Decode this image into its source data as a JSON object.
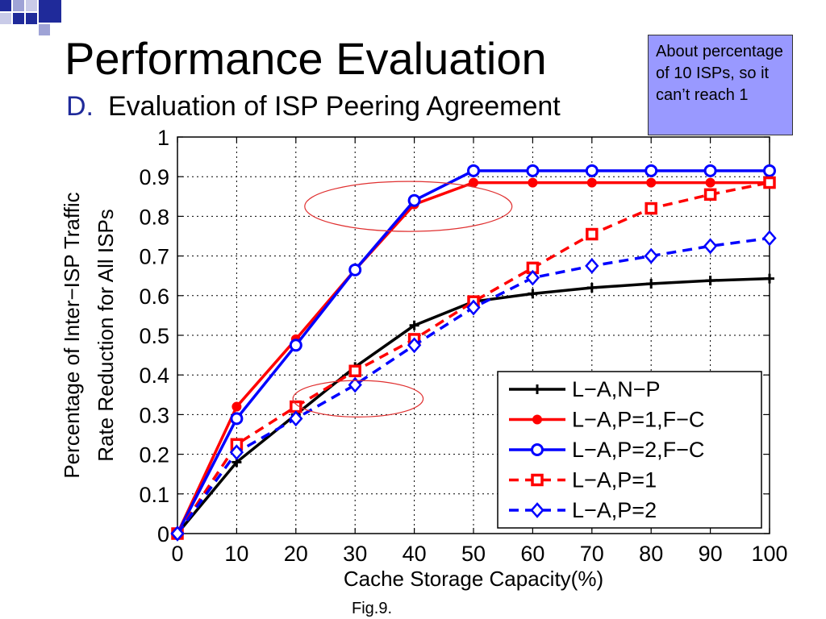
{
  "slide": {
    "title": "Performance Evaluation",
    "section_letter": "D.",
    "section_title": "Evaluation of ISP Peering Agreement",
    "note": "About percentage of 10 ISPs, so it can’t reach 1",
    "caption": "Fig.9."
  },
  "colors": {
    "note_bg": "#9999ff",
    "black": "#000000",
    "red": "#ff0000",
    "blue": "#0000ff",
    "ellipse": "#e03030"
  },
  "chart_data": {
    "type": "line",
    "xlabel": "Cache Storage Capacity(%)",
    "ylabel_line1": "Percentage of Inter−ISP Traffic",
    "ylabel_line2": "Rate Reduction for All ISPs",
    "xlim": [
      0,
      100
    ],
    "ylim": [
      0,
      1
    ],
    "x_ticks": [
      0,
      10,
      20,
      30,
      40,
      50,
      60,
      70,
      80,
      90,
      100
    ],
    "y_ticks": [
      0,
      0.1,
      0.2,
      0.3,
      0.4,
      0.5,
      0.6,
      0.7,
      0.8,
      0.9,
      1
    ],
    "x_tick_labels": [
      "0",
      "10",
      "20",
      "30",
      "40",
      "50",
      "60",
      "70",
      "80",
      "90",
      "100"
    ],
    "y_tick_labels": [
      "0",
      "0.1",
      "0.2",
      "0.3",
      "0.4",
      "0.5",
      "0.6",
      "0.7",
      "0.8",
      "0.9",
      "1"
    ],
    "grid": true,
    "legend_position": "bottom-right",
    "x": [
      0,
      10,
      20,
      30,
      40,
      50,
      60,
      70,
      80,
      90,
      100
    ],
    "series": [
      {
        "name": "L−A,N−P",
        "color": "#000000",
        "dash": false,
        "marker": "plus",
        "values": [
          0,
          0.18,
          0.3,
          0.42,
          0.525,
          0.585,
          0.605,
          0.62,
          0.63,
          0.638,
          0.643
        ]
      },
      {
        "name": "L−A,P=1,F−C",
        "color": "#ff0000",
        "dash": false,
        "marker": "dot",
        "values": [
          0,
          0.32,
          0.49,
          0.665,
          0.83,
          0.885,
          0.885,
          0.885,
          0.885,
          0.885,
          0.885
        ]
      },
      {
        "name": "L−A,P=2,F−C",
        "color": "#0000ff",
        "dash": false,
        "marker": "circle",
        "values": [
          0,
          0.29,
          0.475,
          0.665,
          0.84,
          0.915,
          0.915,
          0.915,
          0.915,
          0.915,
          0.915
        ]
      },
      {
        "name": "L−A,P=1",
        "color": "#ff0000",
        "dash": true,
        "marker": "square",
        "values": [
          0,
          0.225,
          0.32,
          0.41,
          0.49,
          0.585,
          0.67,
          0.755,
          0.82,
          0.855,
          0.885
        ]
      },
      {
        "name": "L−A,P=2",
        "color": "#0000ff",
        "dash": true,
        "marker": "diamond",
        "values": [
          0,
          0.205,
          0.29,
          0.375,
          0.475,
          0.57,
          0.645,
          0.675,
          0.7,
          0.725,
          0.745
        ]
      }
    ],
    "annotations": [
      {
        "type": "ellipse",
        "cx": 39,
        "cy": 0.825,
        "rx": 17.5,
        "ry": 0.063
      },
      {
        "type": "ellipse",
        "cx": 30.5,
        "cy": 0.34,
        "rx": 11,
        "ry": 0.046
      }
    ]
  }
}
